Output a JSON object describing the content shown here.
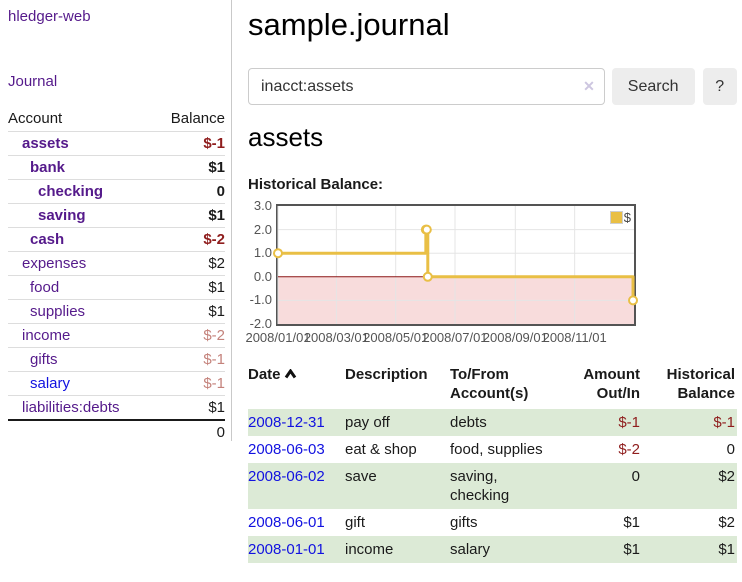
{
  "brand": "hledger-web",
  "nav": {
    "journal": "Journal"
  },
  "sidebar": {
    "header": {
      "account": "Account",
      "balance": "Balance"
    },
    "accounts": [
      {
        "name": "assets",
        "balance": "$-1",
        "depth": 1,
        "bold": true,
        "balance_tone": "neg-strong",
        "link_tone": "visited"
      },
      {
        "name": "bank",
        "balance": "$1",
        "depth": 2,
        "bold": true,
        "balance_tone": "pos",
        "link_tone": "visited"
      },
      {
        "name": "checking",
        "balance": "0",
        "depth": 3,
        "bold": true,
        "balance_tone": "pos",
        "link_tone": "visited"
      },
      {
        "name": "saving",
        "balance": "$1",
        "depth": 3,
        "bold": true,
        "balance_tone": "pos",
        "link_tone": "visited"
      },
      {
        "name": "cash",
        "balance": "$-2",
        "depth": 2,
        "bold": true,
        "balance_tone": "neg-strong",
        "link_tone": "visited"
      },
      {
        "name": "expenses",
        "balance": "$2",
        "depth": 1,
        "bold": false,
        "balance_tone": "pos",
        "link_tone": "visited"
      },
      {
        "name": "food",
        "balance": "$1",
        "depth": 2,
        "bold": false,
        "balance_tone": "pos",
        "link_tone": "visited"
      },
      {
        "name": "supplies",
        "balance": "$1",
        "depth": 2,
        "bold": false,
        "balance_tone": "pos",
        "link_tone": "visited"
      },
      {
        "name": "income",
        "balance": "$-2",
        "depth": 1,
        "bold": false,
        "balance_tone": "neg-soft",
        "link_tone": "visited"
      },
      {
        "name": "gifts",
        "balance": "$-1",
        "depth": 2,
        "bold": false,
        "balance_tone": "neg-soft",
        "link_tone": "visited"
      },
      {
        "name": "salary",
        "balance": "$-1",
        "depth": 2,
        "bold": false,
        "balance_tone": "neg-soft",
        "link_tone": "unvisited"
      },
      {
        "name": "liabilities:debts",
        "balance": "$1",
        "depth": 1,
        "bold": false,
        "balance_tone": "pos",
        "link_tone": "visited"
      }
    ],
    "total": "0"
  },
  "header": {
    "title": "sample.journal"
  },
  "search": {
    "value": "inacct:assets",
    "clear_icon": "✕",
    "button_label": "Search",
    "help_label": "?"
  },
  "account_page": {
    "heading": "assets",
    "chart_title": "Historical Balance:"
  },
  "chart_data": {
    "type": "line",
    "step": "after",
    "series": [
      {
        "name": "$",
        "color": "#e9bf45",
        "points": [
          [
            "2008-01-01",
            1
          ],
          [
            "2008-06-01",
            2
          ],
          [
            "2008-06-02",
            2
          ],
          [
            "2008-06-03",
            0
          ],
          [
            "2008-12-31",
            -1
          ]
        ]
      }
    ],
    "x_range": [
      "2008-01-01",
      "2009-01-01"
    ],
    "x_ticks": [
      "2008/01/01",
      "2008/03/01",
      "2008/05/01",
      "2008/07/01",
      "2008/09/01",
      "2008/11/01"
    ],
    "y_ticks": [
      3.0,
      2.0,
      1.0,
      0.0,
      -1.0,
      -2.0
    ],
    "ylim": [
      -2,
      3
    ],
    "legend": "$",
    "legend_position": "top-right",
    "grid": true,
    "negative_fill": "#f8dcdc",
    "zero_line_color": "#8b1515",
    "grid_color": "#e5e5e5"
  },
  "register": {
    "headers": {
      "date": "Date",
      "description": "Description",
      "tofrom": "To/From\nAccount(s)",
      "amount": "Amount\nOut/In",
      "balance": "Historical\nBalance"
    },
    "rows": [
      {
        "date": "2008-12-31",
        "description": "pay off",
        "accounts": "debts",
        "amount": "$-1",
        "amount_tone": "neg",
        "balance": "$-1",
        "balance_tone": "neg",
        "highlight": true
      },
      {
        "date": "2008-06-03",
        "description": "eat & shop",
        "accounts": "food, supplies",
        "amount": "$-2",
        "amount_tone": "neg",
        "balance": "0",
        "balance_tone": "pos",
        "highlight": false
      },
      {
        "date": "2008-06-02",
        "description": "save",
        "accounts": "saving, checking",
        "amount": "0",
        "amount_tone": "pos",
        "balance": "$2",
        "balance_tone": "pos",
        "highlight": true
      },
      {
        "date": "2008-06-01",
        "description": "gift",
        "accounts": "gifts",
        "amount": "$1",
        "amount_tone": "pos",
        "balance": "$2",
        "balance_tone": "pos",
        "highlight": false
      },
      {
        "date": "2008-01-01",
        "description": "income",
        "accounts": "salary",
        "amount": "$1",
        "amount_tone": "pos",
        "balance": "$1",
        "balance_tone": "pos",
        "highlight": true
      }
    ]
  },
  "colors": {
    "link_visited": "#551a8b",
    "link_unvisited": "#1212e0",
    "negative_strong": "#8f1d1d",
    "negative_soft": "#c4827b",
    "row_highlight": "#dcead6",
    "chart_line": "#e9bf45"
  }
}
